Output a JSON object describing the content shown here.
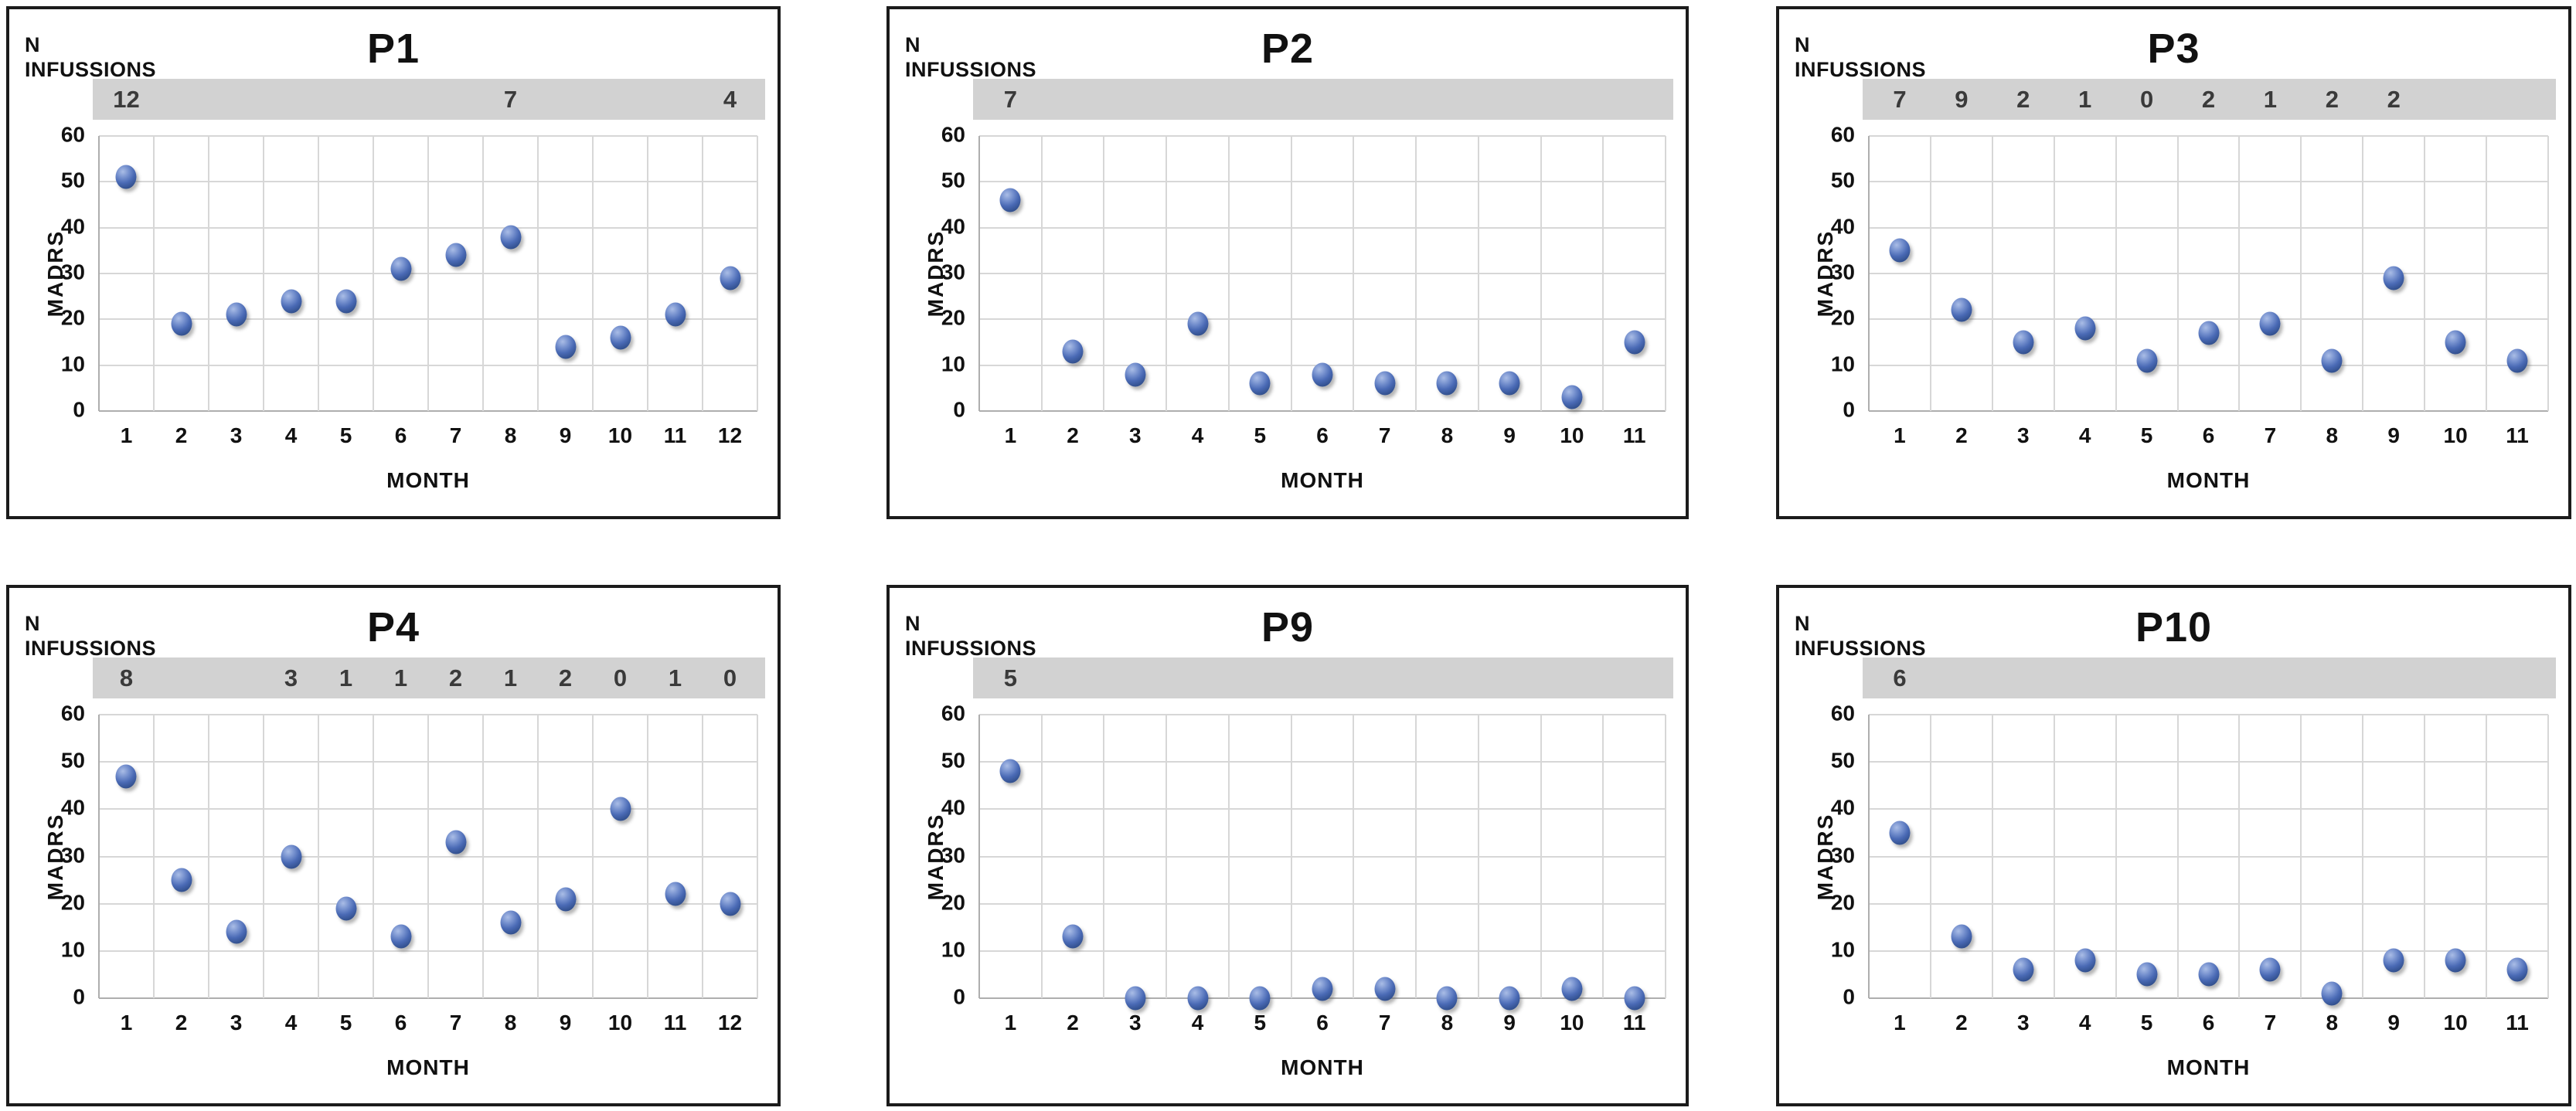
{
  "labels": {
    "n_line1": "N",
    "n_line2": "INFUSSIONS"
  },
  "y_axis": {
    "min": 0,
    "max": 60,
    "step": 10,
    "ticks": [
      60,
      50,
      40,
      30,
      20,
      10,
      0
    ]
  },
  "style": {
    "marker_color": "#4a6ab5",
    "marker_highlight": "#aabde6",
    "marker_mid": "#7590ce",
    "marker_dark": "#33518f",
    "marker_edge": "#27406f",
    "bar_color": "#d2d2d2",
    "grid_color": "#d7d7d7",
    "axis_color": "#aeaeae",
    "infusion_text_color": "#3a3a3a",
    "border_color": "#1b1b1b"
  },
  "chart_data": [
    {
      "type": "scatter",
      "title": "P1",
      "xlabel": "MONTH",
      "ylabel": "MADRS",
      "ylim": [
        0,
        60
      ],
      "x": [
        1,
        2,
        3,
        4,
        5,
        6,
        7,
        8,
        9,
        10,
        11,
        12
      ],
      "y": [
        51,
        19,
        21,
        24,
        24,
        31,
        34,
        38,
        14,
        16,
        21,
        29
      ],
      "infusions": [
        {
          "month": 1,
          "count": "12"
        },
        {
          "month": 8,
          "count": "7"
        },
        {
          "month": 12,
          "count": "4"
        }
      ]
    },
    {
      "type": "scatter",
      "title": "P2",
      "xlabel": "MONTH",
      "ylabel": "MADRS",
      "ylim": [
        0,
        60
      ],
      "x": [
        1,
        2,
        3,
        4,
        5,
        6,
        7,
        8,
        9,
        10,
        11
      ],
      "y": [
        46,
        13,
        8,
        19,
        6,
        8,
        6,
        6,
        6,
        3,
        15
      ],
      "infusions": [
        {
          "month": 1,
          "count": "7"
        }
      ]
    },
    {
      "type": "scatter",
      "title": "P3",
      "xlabel": "MONTH",
      "ylabel": "MADRS",
      "ylim": [
        0,
        60
      ],
      "x": [
        1,
        2,
        3,
        4,
        5,
        6,
        7,
        8,
        9,
        10,
        11
      ],
      "y": [
        35,
        22,
        15,
        18,
        11,
        17,
        19,
        11,
        29,
        15,
        11
      ],
      "infusions": [
        {
          "month": 1,
          "count": "7"
        },
        {
          "month": 2,
          "count": "9"
        },
        {
          "month": 3,
          "count": "2"
        },
        {
          "month": 4,
          "count": "1"
        },
        {
          "month": 5,
          "count": "0"
        },
        {
          "month": 6,
          "count": "2"
        },
        {
          "month": 7,
          "count": "1"
        },
        {
          "month": 8,
          "count": "2"
        },
        {
          "month": 9,
          "count": "2"
        }
      ]
    },
    {
      "type": "scatter",
      "title": "P4",
      "xlabel": "MONTH",
      "ylabel": "MADRS",
      "ylim": [
        0,
        60
      ],
      "x": [
        1,
        2,
        3,
        4,
        5,
        6,
        7,
        8,
        9,
        10,
        11,
        12
      ],
      "y": [
        47,
        25,
        14,
        30,
        19,
        13,
        33,
        16,
        21,
        40,
        22,
        20
      ],
      "infusions": [
        {
          "month": 1,
          "count": "8"
        },
        {
          "month": 4,
          "count": "3"
        },
        {
          "month": 5,
          "count": "1"
        },
        {
          "month": 6,
          "count": "1"
        },
        {
          "month": 7,
          "count": "2"
        },
        {
          "month": 8,
          "count": "1"
        },
        {
          "month": 9,
          "count": "2"
        },
        {
          "month": 10,
          "count": "0"
        },
        {
          "month": 11,
          "count": "1"
        },
        {
          "month": 12,
          "count": "0"
        }
      ]
    },
    {
      "type": "scatter",
      "title": "P9",
      "xlabel": "MONTH",
      "ylabel": "MADRS",
      "ylim": [
        0,
        60
      ],
      "x": [
        1,
        2,
        3,
        4,
        5,
        6,
        7,
        8,
        9,
        10,
        11
      ],
      "y": [
        48,
        13,
        0,
        0,
        0,
        2,
        2,
        0,
        0,
        2,
        0
      ],
      "infusions": [
        {
          "month": 1,
          "count": "5"
        }
      ]
    },
    {
      "type": "scatter",
      "title": "P10",
      "xlabel": "MONTH",
      "ylabel": "MADRS",
      "ylim": [
        0,
        60
      ],
      "x": [
        1,
        2,
        3,
        4,
        5,
        6,
        7,
        8,
        9,
        10,
        11
      ],
      "y": [
        35,
        13,
        6,
        8,
        5,
        5,
        6,
        1,
        8,
        8,
        6
      ],
      "infusions": [
        {
          "month": 1,
          "count": "6"
        }
      ]
    }
  ]
}
